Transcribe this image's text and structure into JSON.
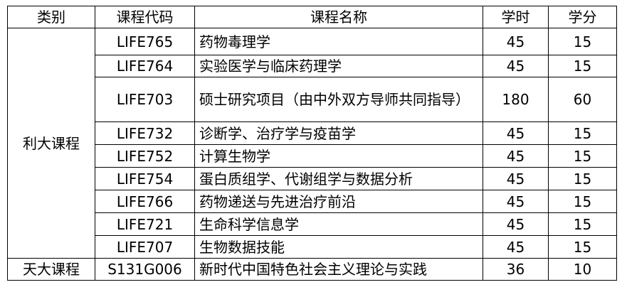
{
  "headers": [
    "类别",
    "课程代码",
    "课程名称",
    "学时",
    "学分"
  ],
  "groups": [
    {
      "category": "利大课程",
      "rows": [
        {
          "code": "LIFE765",
          "name": "药物毒理学",
          "hours": "45",
          "credits": "15"
        },
        {
          "code": "LIFE764",
          "name": "实验医学与临床药理学",
          "hours": "45",
          "credits": "15"
        },
        {
          "code": "LIFE703",
          "name": "硕士研究项目（由中外双方导师共同指导）",
          "hours": "180",
          "credits": "60"
        },
        {
          "code": "LIFE732",
          "name": "诊断学、治疗学与疫苗学",
          "hours": "45",
          "credits": "15"
        },
        {
          "code": "LIFE752",
          "name": "计算生物学",
          "hours": "45",
          "credits": "15"
        },
        {
          "code": "LIFE754",
          "name": "蛋白质组学、代谢组学与数据分析",
          "hours": "45",
          "credits": "15"
        },
        {
          "code": "LIFE766",
          "name": "药物递送与先进治疗前沿",
          "hours": "45",
          "credits": "15"
        },
        {
          "code": "LIFE721",
          "name": "生命科学信息学",
          "hours": "45",
          "credits": "15"
        },
        {
          "code": "LIFE707",
          "name": "生物数据技能",
          "hours": "45",
          "credits": "15"
        }
      ]
    },
    {
      "category": "天大课程",
      "rows": [
        {
          "code": "S131G006",
          "name": "新时代中国特色社会主义理论与实践",
          "hours": "36",
          "credits": "10"
        }
      ]
    }
  ]
}
